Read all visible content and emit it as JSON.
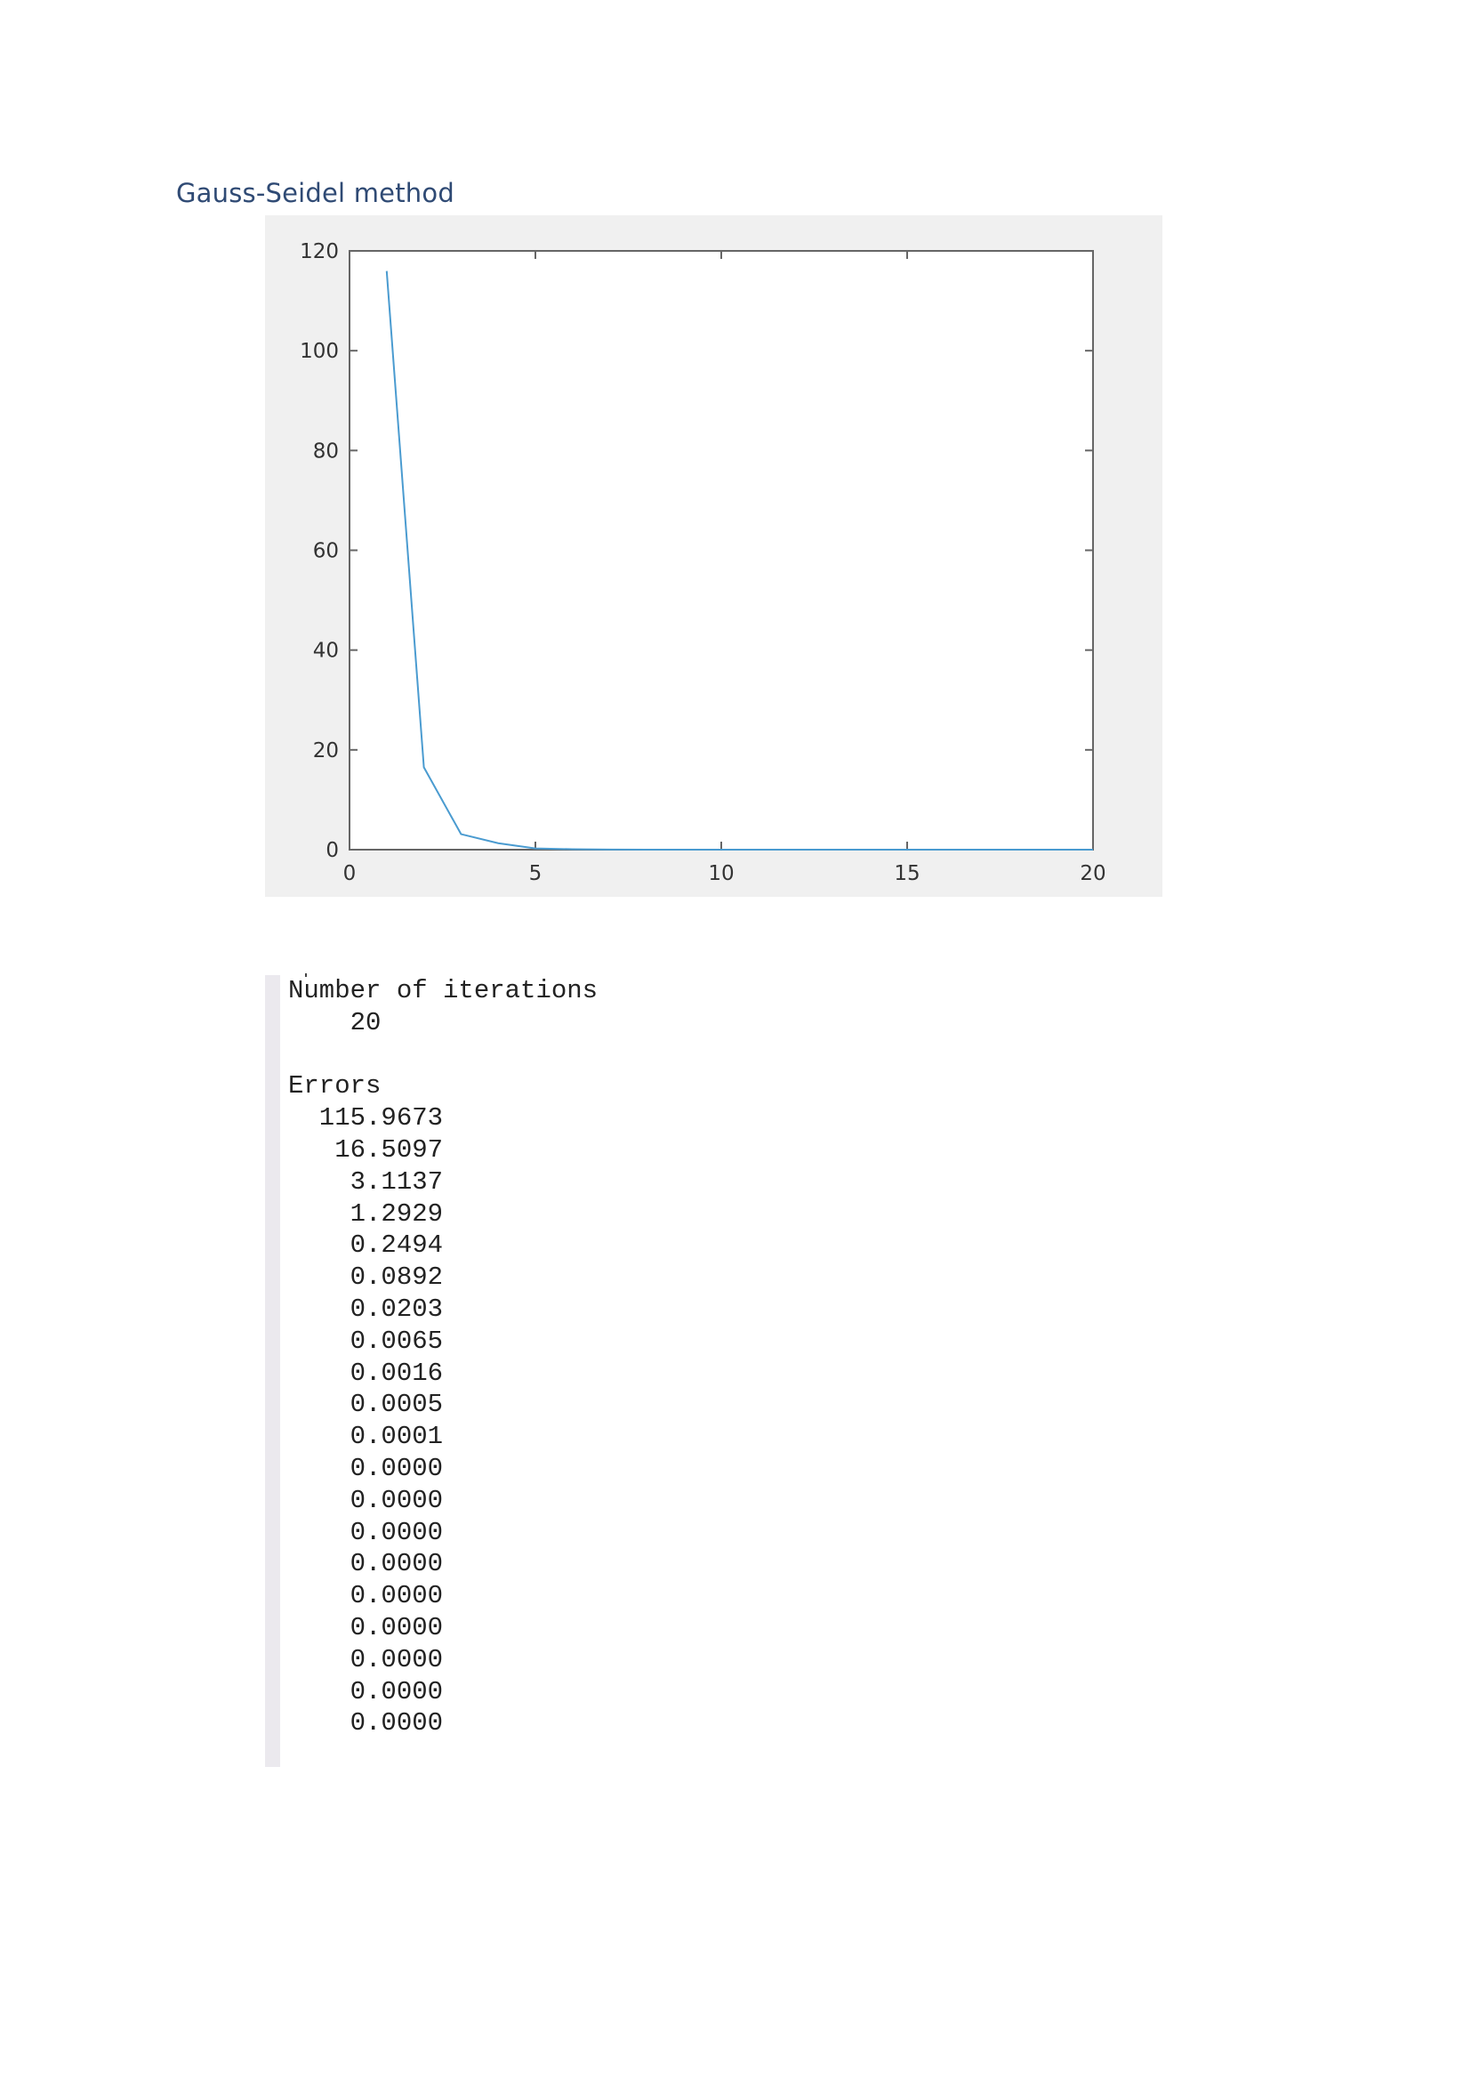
{
  "heading": "Gauss-Seidel method",
  "chart_data": {
    "type": "line",
    "title": "",
    "xlabel": "",
    "ylabel": "",
    "xlim": [
      0,
      20
    ],
    "ylim": [
      0,
      120
    ],
    "xticks": [
      0,
      5,
      10,
      15,
      20
    ],
    "yticks": [
      0,
      20,
      40,
      60,
      80,
      100,
      120
    ],
    "grid": false,
    "line_color": "#4a9bd0",
    "series": [
      {
        "x": [
          1,
          2,
          3,
          4,
          5,
          6,
          7,
          8,
          9,
          10,
          11,
          12,
          13,
          14,
          15,
          16,
          17,
          18,
          19,
          20
        ],
        "y": [
          115.9673,
          16.5097,
          3.1137,
          1.2929,
          0.2494,
          0.0892,
          0.0203,
          0.0065,
          0.0016,
          0.0005,
          0.0001,
          0,
          0,
          0,
          0,
          0,
          0,
          0,
          0,
          0
        ]
      }
    ]
  },
  "console": {
    "iterations_label": "Number of iterations",
    "iterations_value": "20",
    "errors_label": "Errors",
    "errors": [
      "115.9673",
      "16.5097",
      "3.1137",
      "1.2929",
      "0.2494",
      "0.0892",
      "0.0203",
      "0.0065",
      "0.0016",
      "0.0005",
      "0.0001",
      "0.0000",
      "0.0000",
      "0.0000",
      "0.0000",
      "0.0000",
      "0.0000",
      "0.0000",
      "0.0000",
      "0.0000"
    ]
  }
}
